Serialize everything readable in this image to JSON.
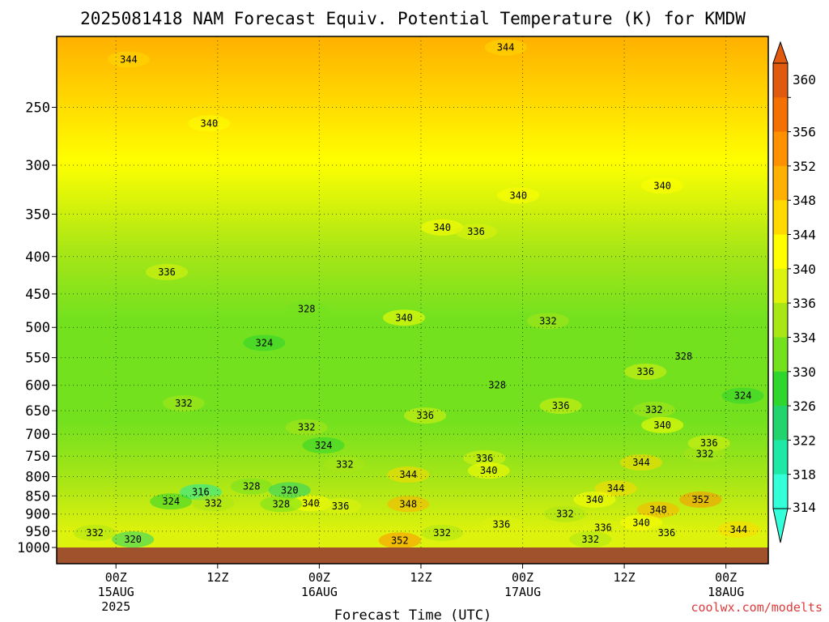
{
  "chart_data": {
    "type": "heatmap",
    "title": "2025081418 NAM Forecast Equiv. Potential Temperature (K) for KMDW",
    "xlabel": "Forecast Time (UTC)",
    "ylabel": "",
    "credit": "coolwx.com/modelts",
    "y_scale": "log",
    "y_inverted": true,
    "ylim": [
      1000,
      200
    ],
    "xlim_hours": [
      -7,
      77
    ],
    "grid": true,
    "y_ticks": [
      250,
      300,
      350,
      400,
      450,
      500,
      550,
      600,
      650,
      700,
      750,
      800,
      850,
      900,
      950,
      1000
    ],
    "x_ticks": [
      {
        "hour": 0,
        "label": "00Z",
        "date": "15AUG",
        "year": "2025"
      },
      {
        "hour": 12,
        "label": "12Z",
        "date": "",
        "year": ""
      },
      {
        "hour": 24,
        "label": "00Z",
        "date": "16AUG",
        "year": ""
      },
      {
        "hour": 36,
        "label": "12Z",
        "date": "",
        "year": ""
      },
      {
        "hour": 48,
        "label": "00Z",
        "date": "17AUG",
        "year": ""
      },
      {
        "hour": 60,
        "label": "12Z",
        "date": "",
        "year": ""
      },
      {
        "hour": 72,
        "label": "00Z",
        "date": "18AUG",
        "year": ""
      }
    ],
    "colorbar": {
      "unit": "K",
      "ticks": [
        314,
        318,
        322,
        326,
        330,
        334,
        336,
        340,
        344,
        348,
        352,
        356,
        360
      ],
      "colors": [
        "#33ffd9",
        "#1de8a6",
        "#22d46e",
        "#2ed62e",
        "#74e11f",
        "#a9e616",
        "#ddf20c",
        "#ffff00",
        "#ffd900",
        "#ffb000",
        "#ff9000",
        "#f47000",
        "#e05a10"
      ]
    },
    "ground_color": "#a0522d",
    "theta_e_profile": [
      {
        "pressure": 1000,
        "theta_e": 336
      },
      {
        "pressure": 850,
        "theta_e": 332
      },
      {
        "pressure": 700,
        "theta_e": 330
      },
      {
        "pressure": 500,
        "theta_e": 330
      },
      {
        "pressure": 400,
        "theta_e": 334
      },
      {
        "pressure": 300,
        "theta_e": 340
      },
      {
        "pressure": 200,
        "theta_e": 346
      }
    ],
    "contour_labels": [
      {
        "hour": 1.5,
        "pressure": 215,
        "value": "344"
      },
      {
        "hour": 46,
        "pressure": 207,
        "value": "344"
      },
      {
        "hour": 11,
        "pressure": 263,
        "value": "340"
      },
      {
        "hour": 64.5,
        "pressure": 320,
        "value": "340"
      },
      {
        "hour": 47.5,
        "pressure": 330,
        "value": "340"
      },
      {
        "hour": 38.5,
        "pressure": 365,
        "value": "340"
      },
      {
        "hour": 42.5,
        "pressure": 370,
        "value": "336"
      },
      {
        "hour": 6,
        "pressure": 420,
        "value": "336"
      },
      {
        "hour": 22.5,
        "pressure": 472,
        "value": "328"
      },
      {
        "hour": 34,
        "pressure": 485,
        "value": "340"
      },
      {
        "hour": 51,
        "pressure": 490,
        "value": "332"
      },
      {
        "hour": 17.5,
        "pressure": 525,
        "value": "324"
      },
      {
        "hour": 67,
        "pressure": 548,
        "value": "328"
      },
      {
        "hour": 62.5,
        "pressure": 575,
        "value": "336"
      },
      {
        "hour": 45,
        "pressure": 600,
        "value": "328"
      },
      {
        "hour": 74,
        "pressure": 620,
        "value": "324"
      },
      {
        "hour": 8,
        "pressure": 635,
        "value": "332"
      },
      {
        "hour": 52.5,
        "pressure": 640,
        "value": "336"
      },
      {
        "hour": 63.5,
        "pressure": 648,
        "value": "332"
      },
      {
        "hour": 36.5,
        "pressure": 660,
        "value": "336"
      },
      {
        "hour": 64.5,
        "pressure": 680,
        "value": "340"
      },
      {
        "hour": 22.5,
        "pressure": 685,
        "value": "332"
      },
      {
        "hour": 70,
        "pressure": 720,
        "value": "336"
      },
      {
        "hour": 24.5,
        "pressure": 725,
        "value": "324"
      },
      {
        "hour": 69.5,
        "pressure": 745,
        "value": "332"
      },
      {
        "hour": 43.5,
        "pressure": 755,
        "value": "336"
      },
      {
        "hour": 62,
        "pressure": 765,
        "value": "344"
      },
      {
        "hour": 27,
        "pressure": 770,
        "value": "332"
      },
      {
        "hour": 44,
        "pressure": 785,
        "value": "340"
      },
      {
        "hour": 34.5,
        "pressure": 795,
        "value": "344"
      },
      {
        "hour": 16,
        "pressure": 825,
        "value": "328"
      },
      {
        "hour": 59,
        "pressure": 830,
        "value": "344"
      },
      {
        "hour": 20.5,
        "pressure": 835,
        "value": "320"
      },
      {
        "hour": 10,
        "pressure": 840,
        "value": "316"
      },
      {
        "hour": 56.5,
        "pressure": 860,
        "value": "340"
      },
      {
        "hour": 69,
        "pressure": 860,
        "value": "352"
      },
      {
        "hour": 6.5,
        "pressure": 865,
        "value": "324"
      },
      {
        "hour": 11.5,
        "pressure": 870,
        "value": "332"
      },
      {
        "hour": 23,
        "pressure": 870,
        "value": "340"
      },
      {
        "hour": 19.5,
        "pressure": 872,
        "value": "328"
      },
      {
        "hour": 34.5,
        "pressure": 872,
        "value": "348"
      },
      {
        "hour": 26.5,
        "pressure": 878,
        "value": "336"
      },
      {
        "hour": 64,
        "pressure": 888,
        "value": "348"
      },
      {
        "hour": 53,
        "pressure": 900,
        "value": "332"
      },
      {
        "hour": 62,
        "pressure": 925,
        "value": "340"
      },
      {
        "hour": 45.5,
        "pressure": 930,
        "value": "336"
      },
      {
        "hour": 57.5,
        "pressure": 940,
        "value": "336"
      },
      {
        "hour": 73.5,
        "pressure": 945,
        "value": "344"
      },
      {
        "hour": 65,
        "pressure": 955,
        "value": "336"
      },
      {
        "hour": -2.5,
        "pressure": 955,
        "value": "332"
      },
      {
        "hour": 38.5,
        "pressure": 955,
        "value": "332"
      },
      {
        "hour": 2,
        "pressure": 975,
        "value": "320"
      },
      {
        "hour": 56,
        "pressure": 975,
        "value": "332"
      },
      {
        "hour": 33.5,
        "pressure": 978,
        "value": "352"
      }
    ]
  }
}
